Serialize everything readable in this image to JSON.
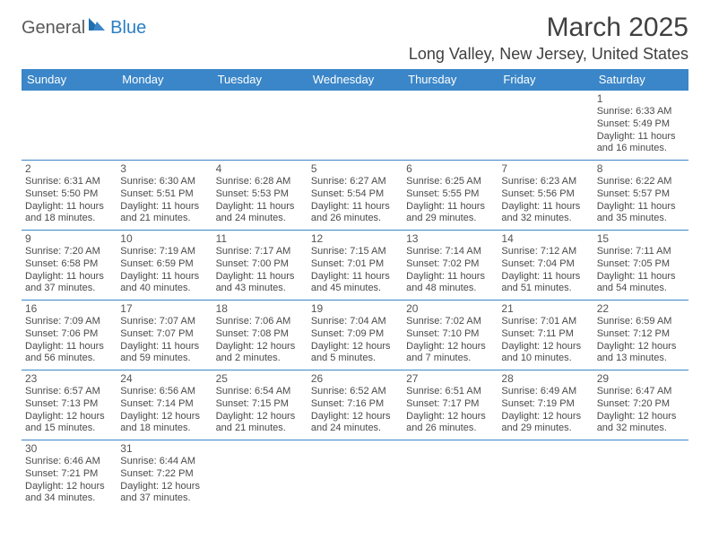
{
  "logo": {
    "dark": "General",
    "blue": "Blue"
  },
  "title": "March 2025",
  "location": "Long Valley, New Jersey, United States",
  "weekdays": [
    "Sunday",
    "Monday",
    "Tuesday",
    "Wednesday",
    "Thursday",
    "Friday",
    "Saturday"
  ],
  "header_bg": "#3a86c8",
  "header_fg": "#ffffff",
  "rows": [
    [
      null,
      null,
      null,
      null,
      null,
      null,
      {
        "n": "1",
        "sr": "6:33 AM",
        "ss": "5:49 PM",
        "dl": "11 hours and 16 minutes."
      }
    ],
    [
      {
        "n": "2",
        "sr": "6:31 AM",
        "ss": "5:50 PM",
        "dl": "11 hours and 18 minutes."
      },
      {
        "n": "3",
        "sr": "6:30 AM",
        "ss": "5:51 PM",
        "dl": "11 hours and 21 minutes."
      },
      {
        "n": "4",
        "sr": "6:28 AM",
        "ss": "5:53 PM",
        "dl": "11 hours and 24 minutes."
      },
      {
        "n": "5",
        "sr": "6:27 AM",
        "ss": "5:54 PM",
        "dl": "11 hours and 26 minutes."
      },
      {
        "n": "6",
        "sr": "6:25 AM",
        "ss": "5:55 PM",
        "dl": "11 hours and 29 minutes."
      },
      {
        "n": "7",
        "sr": "6:23 AM",
        "ss": "5:56 PM",
        "dl": "11 hours and 32 minutes."
      },
      {
        "n": "8",
        "sr": "6:22 AM",
        "ss": "5:57 PM",
        "dl": "11 hours and 35 minutes."
      }
    ],
    [
      {
        "n": "9",
        "sr": "7:20 AM",
        "ss": "6:58 PM",
        "dl": "11 hours and 37 minutes."
      },
      {
        "n": "10",
        "sr": "7:19 AM",
        "ss": "6:59 PM",
        "dl": "11 hours and 40 minutes."
      },
      {
        "n": "11",
        "sr": "7:17 AM",
        "ss": "7:00 PM",
        "dl": "11 hours and 43 minutes."
      },
      {
        "n": "12",
        "sr": "7:15 AM",
        "ss": "7:01 PM",
        "dl": "11 hours and 45 minutes."
      },
      {
        "n": "13",
        "sr": "7:14 AM",
        "ss": "7:02 PM",
        "dl": "11 hours and 48 minutes."
      },
      {
        "n": "14",
        "sr": "7:12 AM",
        "ss": "7:04 PM",
        "dl": "11 hours and 51 minutes."
      },
      {
        "n": "15",
        "sr": "7:11 AM",
        "ss": "7:05 PM",
        "dl": "11 hours and 54 minutes."
      }
    ],
    [
      {
        "n": "16",
        "sr": "7:09 AM",
        "ss": "7:06 PM",
        "dl": "11 hours and 56 minutes."
      },
      {
        "n": "17",
        "sr": "7:07 AM",
        "ss": "7:07 PM",
        "dl": "11 hours and 59 minutes."
      },
      {
        "n": "18",
        "sr": "7:06 AM",
        "ss": "7:08 PM",
        "dl": "12 hours and 2 minutes."
      },
      {
        "n": "19",
        "sr": "7:04 AM",
        "ss": "7:09 PM",
        "dl": "12 hours and 5 minutes."
      },
      {
        "n": "20",
        "sr": "7:02 AM",
        "ss": "7:10 PM",
        "dl": "12 hours and 7 minutes."
      },
      {
        "n": "21",
        "sr": "7:01 AM",
        "ss": "7:11 PM",
        "dl": "12 hours and 10 minutes."
      },
      {
        "n": "22",
        "sr": "6:59 AM",
        "ss": "7:12 PM",
        "dl": "12 hours and 13 minutes."
      }
    ],
    [
      {
        "n": "23",
        "sr": "6:57 AM",
        "ss": "7:13 PM",
        "dl": "12 hours and 15 minutes."
      },
      {
        "n": "24",
        "sr": "6:56 AM",
        "ss": "7:14 PM",
        "dl": "12 hours and 18 minutes."
      },
      {
        "n": "25",
        "sr": "6:54 AM",
        "ss": "7:15 PM",
        "dl": "12 hours and 21 minutes."
      },
      {
        "n": "26",
        "sr": "6:52 AM",
        "ss": "7:16 PM",
        "dl": "12 hours and 24 minutes."
      },
      {
        "n": "27",
        "sr": "6:51 AM",
        "ss": "7:17 PM",
        "dl": "12 hours and 26 minutes."
      },
      {
        "n": "28",
        "sr": "6:49 AM",
        "ss": "7:19 PM",
        "dl": "12 hours and 29 minutes."
      },
      {
        "n": "29",
        "sr": "6:47 AM",
        "ss": "7:20 PM",
        "dl": "12 hours and 32 minutes."
      }
    ],
    [
      {
        "n": "30",
        "sr": "6:46 AM",
        "ss": "7:21 PM",
        "dl": "12 hours and 34 minutes."
      },
      {
        "n": "31",
        "sr": "6:44 AM",
        "ss": "7:22 PM",
        "dl": "12 hours and 37 minutes."
      },
      null,
      null,
      null,
      null,
      null
    ]
  ],
  "labels": {
    "sunrise": "Sunrise:",
    "sunset": "Sunset:",
    "daylight": "Daylight:"
  }
}
